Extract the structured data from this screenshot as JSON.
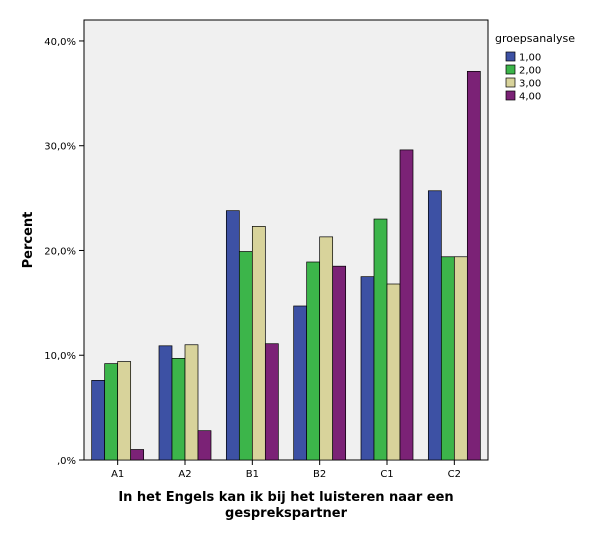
{
  "chart_data": {
    "type": "bar",
    "xlabel_lines": [
      "In het Engels kan ik bij het luisteren naar een",
      "gesprekspartner"
    ],
    "ylabel": "Percent",
    "categories": [
      "A1",
      "A2",
      "B1",
      "B2",
      "C1",
      "C2"
    ],
    "ylim": [
      0,
      42
    ],
    "yticks": [
      0,
      10,
      20,
      30,
      40
    ],
    "ytick_labels": [
      ",0%",
      "10,0%",
      "20,0%",
      "30,0%",
      "40,0%"
    ],
    "grid": false,
    "legend": {
      "title": "groepsanalyse",
      "placement": "right"
    },
    "series": [
      {
        "name": "1,00",
        "color": "#3d51a4",
        "values": [
          7.6,
          10.9,
          23.8,
          14.7,
          17.5,
          25.7
        ]
      },
      {
        "name": "2,00",
        "color": "#3cb54a",
        "values": [
          9.2,
          9.7,
          19.9,
          18.9,
          23.0,
          19.4
        ]
      },
      {
        "name": "3,00",
        "color": "#d8d39b",
        "values": [
          9.4,
          11.0,
          22.3,
          21.3,
          16.8,
          19.4
        ]
      },
      {
        "name": "4,00",
        "color": "#7b2276",
        "values": [
          1.0,
          2.8,
          11.1,
          18.5,
          29.6,
          37.1
        ]
      }
    ],
    "background": "#f0f0f0"
  }
}
